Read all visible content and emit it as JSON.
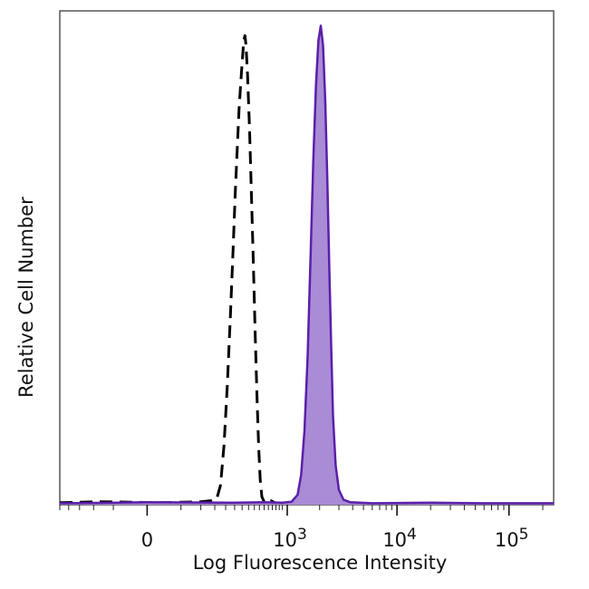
{
  "chart_data": {
    "type": "histogram",
    "xlabel": "Log Fluorescence Intensity",
    "ylabel": "Relative Cell Number",
    "x_scale": "biexponential",
    "x_ticks": [
      {
        "value": 0,
        "label": "0",
        "exp": ""
      },
      {
        "value": 1000,
        "label": "10",
        "exp": "3"
      },
      {
        "value": 10000,
        "label": "10",
        "exp": "4"
      },
      {
        "value": 100000,
        "label": "10",
        "exp": "5"
      }
    ],
    "x_range": [
      -300,
      250000
    ],
    "y_range": [
      0,
      100
    ],
    "grid": false,
    "legend": "none",
    "series": [
      {
        "style": "dashed",
        "stroke": "#000000",
        "fill": "none",
        "points": [
          [
            -300,
            0.4
          ],
          [
            -100,
            0.6
          ],
          [
            20,
            0.4
          ],
          [
            120,
            0.6
          ],
          [
            160,
            0.8
          ],
          [
            190,
            1.2
          ],
          [
            210,
            4
          ],
          [
            230,
            12
          ],
          [
            250,
            24
          ],
          [
            270,
            38
          ],
          [
            290,
            52
          ],
          [
            305,
            63
          ],
          [
            320,
            72
          ],
          [
            335,
            80
          ],
          [
            350,
            86
          ],
          [
            365,
            91
          ],
          [
            375,
            94
          ],
          [
            385,
            95
          ],
          [
            395,
            93
          ],
          [
            410,
            87
          ],
          [
            430,
            76
          ],
          [
            450,
            62
          ],
          [
            470,
            48
          ],
          [
            490,
            34
          ],
          [
            510,
            22
          ],
          [
            530,
            12
          ],
          [
            550,
            5
          ],
          [
            570,
            1.6
          ],
          [
            600,
            0.6
          ],
          [
            640,
            0.3
          ],
          [
            700,
            0.8
          ],
          [
            780,
            0.3
          ]
        ]
      },
      {
        "style": "solid",
        "stroke": "#5b1fa8",
        "fill": "#a98bd6",
        "points": [
          [
            -300,
            0.3
          ],
          [
            0,
            0.5
          ],
          [
            300,
            0.4
          ],
          [
            600,
            0.5
          ],
          [
            900,
            0.4
          ],
          [
            1100,
            0.6
          ],
          [
            1250,
            2
          ],
          [
            1350,
            6
          ],
          [
            1450,
            15
          ],
          [
            1550,
            30
          ],
          [
            1650,
            50
          ],
          [
            1750,
            70
          ],
          [
            1850,
            85
          ],
          [
            1950,
            94
          ],
          [
            2050,
            97
          ],
          [
            2150,
            93
          ],
          [
            2250,
            82
          ],
          [
            2350,
            66
          ],
          [
            2450,
            48
          ],
          [
            2550,
            32
          ],
          [
            2650,
            18
          ],
          [
            2800,
            8
          ],
          [
            3000,
            3
          ],
          [
            3300,
            1
          ],
          [
            3800,
            0.5
          ],
          [
            6000,
            0.3
          ],
          [
            20000,
            0.4
          ],
          [
            60000,
            0.3
          ],
          [
            250000,
            0.3
          ]
        ]
      }
    ]
  }
}
